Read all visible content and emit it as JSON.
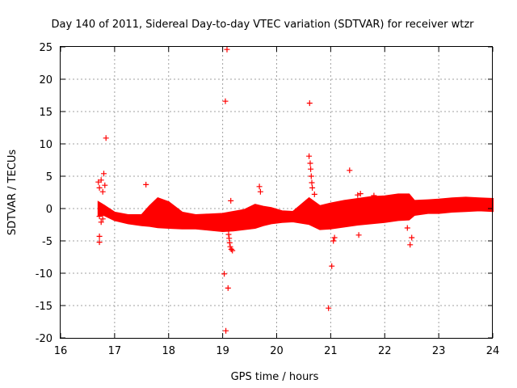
{
  "chart_data": {
    "type": "scatter",
    "title": "Day 140 of 2011, Sidereal Day-to-day VTEC variation (SDTVAR) for receiver wtzr",
    "xlabel": "GPS time / hours",
    "ylabel": "SDTVAR / TECUs",
    "xlim": [
      16,
      24
    ],
    "ylim": [
      -20,
      25
    ],
    "xticks": [
      "16",
      "17",
      "18",
      "19",
      "20",
      "21",
      "22",
      "23",
      "24"
    ],
    "yticks": [
      "25",
      "20",
      "15",
      "10",
      "5",
      "0",
      "-5",
      "-10",
      "-15",
      "-20"
    ],
    "grid": true,
    "marker": "+",
    "color": "#ff0000",
    "band": {
      "x": [
        16.7,
        16.8,
        17.0,
        17.25,
        17.5,
        17.65,
        17.8,
        18.0,
        18.25,
        18.5,
        18.75,
        19.0,
        19.2,
        19.4,
        19.6,
        19.75,
        19.9,
        20.1,
        20.3,
        20.6,
        20.8,
        21.0,
        21.25,
        21.5,
        21.75,
        22.0,
        22.25,
        22.45,
        22.55,
        22.8,
        23.0,
        23.25,
        23.5,
        23.75,
        24.0
      ],
      "lower": [
        -1.0,
        -1.0,
        -1.8,
        -2.3,
        -2.6,
        -2.7,
        -2.9,
        -3.0,
        -3.1,
        -3.1,
        -3.3,
        -3.5,
        -3.4,
        -3.2,
        -3.0,
        -2.6,
        -2.3,
        -2.1,
        -2.0,
        -2.4,
        -3.2,
        -3.1,
        -2.8,
        -2.5,
        -2.3,
        -2.1,
        -1.8,
        -1.7,
        -1.0,
        -0.7,
        -0.7,
        -0.5,
        -0.4,
        -0.3,
        -0.4
      ],
      "upper": [
        1.0,
        0.5,
        -0.6,
        -1.0,
        -1.0,
        0.4,
        1.6,
        1.0,
        -0.6,
        -1.0,
        -0.9,
        -0.8,
        -0.5,
        -0.2,
        0.6,
        0.3,
        0.1,
        -0.4,
        -0.5,
        1.6,
        0.4,
        0.8,
        1.2,
        1.5,
        1.8,
        1.9,
        2.2,
        2.2,
        1.2,
        1.3,
        1.4,
        1.6,
        1.7,
        1.6,
        1.5
      ]
    },
    "outliers": [
      {
        "x": 19.08,
        "y": 24.6
      },
      {
        "x": 19.05,
        "y": 16.6
      },
      {
        "x": 20.61,
        "y": 16.3
      },
      {
        "x": 16.84,
        "y": 10.9
      },
      {
        "x": 21.35,
        "y": 5.9
      },
      {
        "x": 16.8,
        "y": 5.4
      },
      {
        "x": 16.75,
        "y": 4.4
      },
      {
        "x": 16.7,
        "y": 4.1
      },
      {
        "x": 16.72,
        "y": 3.2
      },
      {
        "x": 16.78,
        "y": 2.6
      },
      {
        "x": 16.82,
        "y": 3.6
      },
      {
        "x": 17.58,
        "y": 3.7
      },
      {
        "x": 19.68,
        "y": 3.4
      },
      {
        "x": 19.7,
        "y": 2.6
      },
      {
        "x": 19.15,
        "y": 1.2
      },
      {
        "x": 20.6,
        "y": 8.1
      },
      {
        "x": 20.62,
        "y": 7.0
      },
      {
        "x": 20.63,
        "y": 6.1
      },
      {
        "x": 20.64,
        "y": 5.0
      },
      {
        "x": 20.65,
        "y": 4.0
      },
      {
        "x": 20.66,
        "y": 3.2
      },
      {
        "x": 21.5,
        "y": 2.1
      },
      {
        "x": 21.55,
        "y": 2.3
      },
      {
        "x": 20.7,
        "y": 2.2
      },
      {
        "x": 16.72,
        "y": -1.2
      },
      {
        "x": 16.75,
        "y": -2.1
      },
      {
        "x": 16.78,
        "y": -1.6
      },
      {
        "x": 16.72,
        "y": -4.3
      },
      {
        "x": 16.72,
        "y": -5.2
      },
      {
        "x": 19.12,
        "y": -4.6
      },
      {
        "x": 19.13,
        "y": -5.3
      },
      {
        "x": 19.14,
        "y": -5.9
      },
      {
        "x": 19.16,
        "y": -6.3
      },
      {
        "x": 19.18,
        "y": -6.5
      },
      {
        "x": 19.11,
        "y": -4.0
      },
      {
        "x": 19.03,
        "y": -10.1
      },
      {
        "x": 19.1,
        "y": -12.3
      },
      {
        "x": 19.06,
        "y": -18.9
      },
      {
        "x": 20.96,
        "y": -15.4
      },
      {
        "x": 21.02,
        "y": -8.9
      },
      {
        "x": 21.07,
        "y": -4.5
      },
      {
        "x": 21.05,
        "y": -5.0
      },
      {
        "x": 21.52,
        "y": -4.1
      },
      {
        "x": 22.5,
        "y": -4.5
      },
      {
        "x": 22.47,
        "y": -5.6
      },
      {
        "x": 22.42,
        "y": -3.0
      },
      {
        "x": 19.6,
        "y": -2.0
      },
      {
        "x": 19.2,
        "y": -2.8
      },
      {
        "x": 21.8,
        "y": 2.0
      }
    ]
  }
}
